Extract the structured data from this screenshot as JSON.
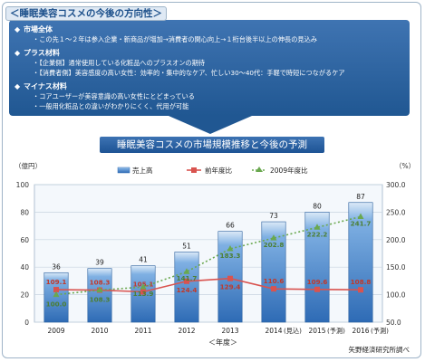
{
  "header": {
    "title": "＜睡眠美容コスメの今後の方向性＞"
  },
  "callout": {
    "sections": [
      {
        "heading": "市場全体",
        "items": [
          "この先１～２年は参入企業・新商品が増加→消費者の関心向上→１桁台後半以上の伸長の見込み"
        ]
      },
      {
        "heading": "プラス材料",
        "items": [
          "【企業側】通常使用している化粧品へのプラスオンの期待",
          "【消費者側】美容感度の高い女性：効率的・集中的なケア、忙しい30～40代：手軽で時短につながるケア"
        ]
      },
      {
        "heading": "マイナス材料",
        "items": [
          "コアユーザーが美容意識の高い女性にとどまっている",
          "一般用化粧品との違いがわかりにくく、代用が可能"
        ]
      }
    ]
  },
  "chart_data": {
    "type": "bar",
    "title": "睡眠美容コスメの市場規模推移と今後の予測",
    "categories": [
      "2009",
      "2010",
      "2011",
      "2012",
      "2013",
      "2014",
      "2015",
      "2016"
    ],
    "category_notes": [
      "",
      "",
      "",
      "",
      "",
      "(見込)",
      "(予測)",
      "(予測)"
    ],
    "xlabel": "＜年度＞",
    "y_left_unit": "（億円）",
    "y_right_unit": "（%）",
    "y_left_ticks": [
      "0",
      "20",
      "40",
      "60",
      "80",
      "100"
    ],
    "y_right_ticks": [
      "50.0",
      "100.0",
      "150.0",
      "200.0",
      "250.0",
      "300.0"
    ],
    "ylim": [
      0,
      100
    ],
    "y2lim": [
      50,
      300
    ],
    "series": [
      {
        "name": "売上高",
        "kind": "bar",
        "axis": "left",
        "values": [
          36,
          39,
          41,
          51,
          66,
          73,
          80,
          87
        ],
        "labels": [
          "36",
          "39",
          "41",
          "51",
          "66",
          "73",
          "80",
          "87"
        ]
      },
      {
        "name": "前年度比",
        "kind": "line",
        "axis": "right",
        "color": "#d9534f",
        "values": [
          109.1,
          108.3,
          105.1,
          124.4,
          129.4,
          110.6,
          109.6,
          108.8
        ],
        "labels": [
          "109.1",
          "108.3",
          "105.1",
          "124.4",
          "129.4",
          "110.6",
          "109.6",
          "108.8"
        ]
      },
      {
        "name": "2009年度比",
        "kind": "line",
        "axis": "right",
        "color": "#6aa84f",
        "values": [
          100.0,
          108.3,
          113.9,
          141.7,
          183.3,
          202.8,
          222.2,
          241.7
        ],
        "labels": [
          "100.0",
          "108.3",
          "113.9",
          "141.7",
          "183.3",
          "202.8",
          "222.2",
          "241.7"
        ]
      }
    ],
    "source": "矢野経済研究所調べ",
    "grid": true,
    "legend": "top"
  },
  "colors": {
    "bar_top": "#dbe9f7",
    "bar_bottom": "#2e6bb5",
    "yoy": "#d9534f",
    "base": "#6aa84f",
    "title_bg": "#1d5394"
  }
}
